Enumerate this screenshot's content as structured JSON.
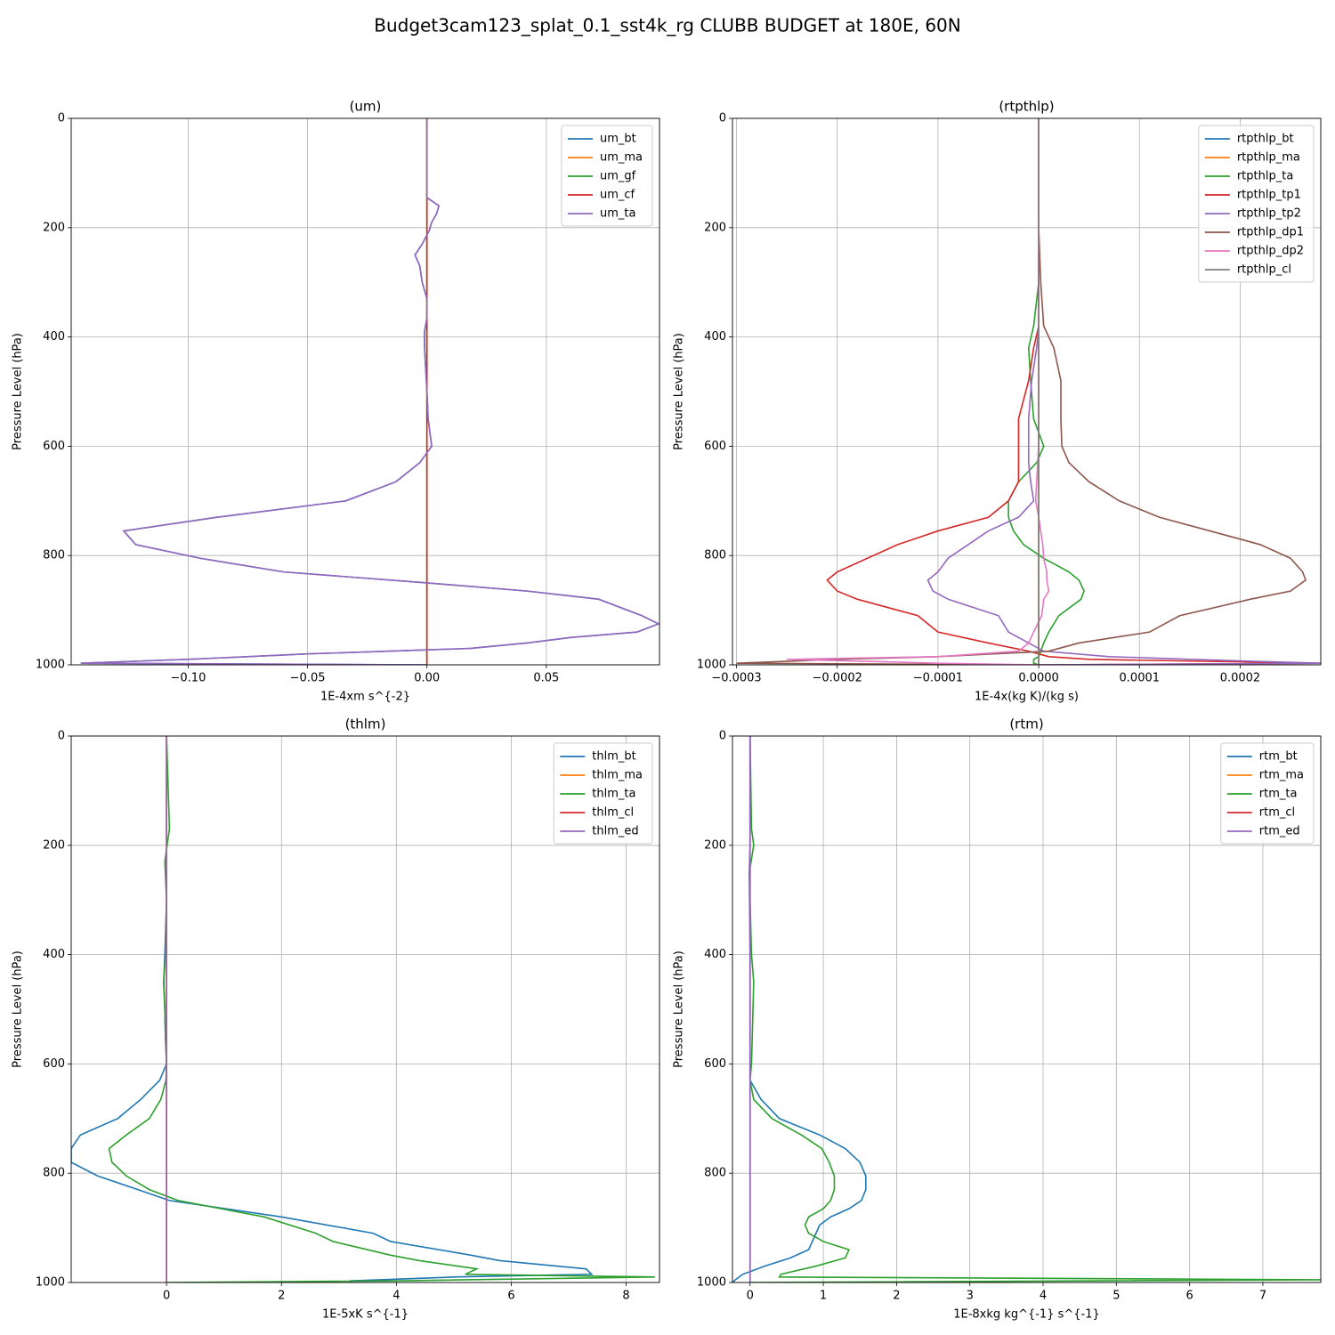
{
  "title": "Budget3cam123_splat_0.1_sst4k_rg CLUBB BUDGET at 180E, 60N",
  "chart_data": [
    {
      "type": "line",
      "title": "(um)",
      "xlabel": "1E-4xm s^{-2}",
      "ylabel": "Pressure Level (hPa)",
      "xlim": [
        -0.149,
        0.0974
      ],
      "ylim": [
        1000,
        0
      ],
      "xticks": [
        {
          "value": -0.1,
          "label": "−0.10"
        },
        {
          "value": -0.05,
          "label": "−0.05"
        },
        {
          "value": 0,
          "label": "0.00"
        },
        0.05
      ],
      "yticks": [
        0,
        200,
        400,
        600,
        800,
        1000
      ],
      "grid": true,
      "legend": "upper right",
      "y": [
        0,
        145,
        160,
        175,
        190,
        205,
        230,
        250,
        270,
        300,
        330,
        365,
        390,
        420,
        500,
        550,
        600,
        630,
        665,
        700,
        730,
        755,
        780,
        805,
        830,
        850,
        865,
        880,
        910,
        925,
        940,
        950,
        960,
        970,
        980,
        990,
        997,
        1000
      ],
      "series": [
        {
          "name": "um_bt",
          "color": "#1f77b4",
          "values": [
            0,
            0,
            0.005,
            0.004,
            0.002,
            0.001,
            -0.002,
            -0.005,
            -0.003,
            -0.002,
            0,
            0,
            -0.001,
            -0.001,
            0,
            0.0005,
            0.002,
            -0.003,
            -0.013,
            -0.034,
            -0.088,
            -0.127,
            -0.122,
            -0.095,
            -0.06,
            0,
            0.042,
            0.072,
            0.09,
            0.097,
            0.088,
            0.06,
            0.042,
            0.018,
            -0.05,
            -0.1,
            -0.145,
            0
          ]
        },
        {
          "name": "um_ma",
          "color": "#ff7f0e",
          "values": [
            0,
            0,
            0,
            0,
            0,
            0,
            0,
            0,
            0,
            0,
            0,
            0,
            0,
            0,
            0,
            0,
            0,
            0,
            0,
            0,
            0,
            0,
            0,
            0,
            0,
            0,
            0,
            0,
            0,
            0,
            0,
            0,
            0,
            0,
            0,
            0,
            0,
            0
          ]
        },
        {
          "name": "um_gf",
          "color": "#2ca02c",
          "values": [
            0,
            0,
            0,
            0,
            0,
            0,
            0,
            0,
            0,
            0,
            0,
            0,
            0,
            0,
            0,
            0,
            0,
            0,
            0,
            0,
            0,
            0,
            0,
            0,
            0,
            0,
            0,
            0,
            0,
            0,
            0,
            0,
            0,
            0,
            0,
            0,
            0,
            0
          ]
        },
        {
          "name": "um_cf",
          "color": "#d62728",
          "values": [
            0,
            0,
            0,
            0,
            0,
            0,
            0,
            0,
            0,
            0,
            0,
            0,
            0,
            0,
            0,
            0,
            0,
            0,
            0,
            0,
            0,
            0,
            0,
            0,
            0,
            0,
            0,
            0,
            0,
            0,
            0,
            0,
            0,
            0,
            0,
            0,
            0,
            0
          ]
        },
        {
          "name": "um_ta",
          "color": "#9467bd",
          "values": [
            0,
            0,
            0.005,
            0.004,
            0.002,
            0.001,
            -0.002,
            -0.005,
            -0.003,
            -0.002,
            0,
            0,
            -0.001,
            -0.001,
            0,
            0.0005,
            0.002,
            -0.003,
            -0.013,
            -0.034,
            -0.088,
            -0.127,
            -0.122,
            -0.095,
            -0.06,
            0,
            0.042,
            0.072,
            0.09,
            0.097,
            0.088,
            0.06,
            0.042,
            0.018,
            -0.05,
            -0.1,
            -0.145,
            0
          ]
        }
      ]
    },
    {
      "type": "line",
      "title": "(rtpthlp)",
      "xlabel": "1E-4x(kg K)/(kg s)",
      "ylabel": "Pressure Level (hPa)",
      "xlim": [
        -0.000304,
        0.00028
      ],
      "ylim": [
        1000,
        0
      ],
      "xticks": [
        {
          "value": -0.0003,
          "label": "−0.0003"
        },
        {
          "value": -0.0002,
          "label": "−0.0002"
        },
        {
          "value": -0.0001,
          "label": "−0.0001"
        },
        {
          "value": 0,
          "label": "0.0000"
        },
        0.0001,
        0.0002
      ],
      "yticks": [
        0,
        200,
        400,
        600,
        800,
        1000
      ],
      "grid": true,
      "legend": "upper right",
      "y": [
        0,
        200,
        300,
        380,
        420,
        480,
        550,
        600,
        630,
        665,
        700,
        730,
        755,
        780,
        805,
        830,
        845,
        865,
        880,
        910,
        940,
        960,
        975,
        985,
        990,
        997,
        1000
      ],
      "series": [
        {
          "name": "rtpthlp_bt",
          "color": "#1f77b4",
          "values": [
            0,
            0,
            0,
            0,
            0,
            0,
            0,
            0,
            0,
            0,
            0,
            0,
            0,
            0,
            0,
            0,
            0,
            0,
            0,
            0,
            0,
            0,
            0,
            0,
            0,
            0,
            0
          ]
        },
        {
          "name": "rtpthlp_ma",
          "color": "#ff7f0e",
          "values": [
            0,
            0,
            0,
            0,
            0,
            0,
            0,
            0,
            0,
            0,
            0,
            0,
            0,
            0,
            0,
            0,
            0,
            0,
            0,
            0,
            0,
            0,
            0,
            0,
            0,
            0,
            0
          ]
        },
        {
          "name": "rtpthlp_ta",
          "color": "#2ca02c",
          "values": [
            0,
            0,
            0,
            -5e-06,
            -1e-05,
            -8e-06,
            -5e-06,
            5e-06,
            -2e-06,
            -2e-05,
            -3e-05,
            -3e-05,
            -2.5e-05,
            -1.5e-05,
            5e-06,
            3e-05,
            4e-05,
            4.5e-05,
            4.2e-05,
            2e-05,
            1e-05,
            5e-06,
            2e-06,
            0,
            -5e-06,
            -5e-06,
            0
          ]
        },
        {
          "name": "rtpthlp_tp1",
          "color": "#d62728",
          "values": [
            0,
            0,
            0,
            0,
            -5e-06,
            -1e-05,
            -2e-05,
            -2e-05,
            -2e-05,
            -2e-05,
            -3e-05,
            -5e-05,
            -0.0001,
            -0.00014,
            -0.00017,
            -0.0002,
            -0.00021,
            -0.0002,
            -0.00018,
            -0.00012,
            -0.0001,
            -5e-05,
            -1e-05,
            1e-05,
            5e-05,
            0.00028,
            0
          ]
        },
        {
          "name": "rtpthlp_tp2",
          "color": "#9467bd",
          "values": [
            0,
            0,
            0,
            0,
            -2e-06,
            -7e-06,
            -1e-05,
            -1e-05,
            -1e-05,
            -8e-06,
            -5e-06,
            -2e-05,
            -5e-05,
            -7e-05,
            -9e-05,
            -0.0001,
            -0.00011,
            -0.000105,
            -9e-05,
            -4e-05,
            -3e-05,
            -1e-05,
            5e-06,
            7e-05,
            0.00015,
            0.00028,
            0
          ]
        },
        {
          "name": "rtpthlp_dp1",
          "color": "#8c564b",
          "values": [
            0,
            0,
            2e-06,
            5e-06,
            1.5e-05,
            2.2e-05,
            2.2e-05,
            2.3e-05,
            3e-05,
            5e-05,
            8e-05,
            0.00012,
            0.00017,
            0.00022,
            0.00025,
            0.000262,
            0.000265,
            0.00025,
            0.00021,
            0.00014,
            0.00011,
            4e-05,
            1e-05,
            -0.0001,
            -0.0002,
            -0.0003,
            0
          ]
        },
        {
          "name": "rtpthlp_dp2",
          "color": "#e377c2",
          "values": [
            0,
            0,
            0,
            0,
            0,
            0,
            0,
            0,
            -1e-06,
            -2e-06,
            -3e-06,
            0,
            2e-06,
            4e-06,
            5e-06,
            8e-06,
            8e-06,
            1e-05,
            5e-06,
            3e-06,
            -5e-06,
            -1e-05,
            -2e-05,
            -0.0001,
            -0.00025,
            -0.0001,
            0
          ]
        },
        {
          "name": "rtpthlp_cl",
          "color": "#7f7f7f",
          "values": [
            0,
            0,
            0,
            0,
            0,
            0,
            0,
            0,
            0,
            0,
            0,
            0,
            0,
            0,
            0,
            0,
            0,
            0,
            0,
            0,
            0,
            0,
            0,
            0,
            0,
            0,
            0
          ]
        }
      ]
    },
    {
      "type": "line",
      "title": "(thlm)",
      "xlabel": "1E-5xK s^{-1}",
      "ylabel": "Pressure Level (hPa)",
      "xlim": [
        -1.66,
        8.58
      ],
      "ylim": [
        1000,
        0
      ],
      "xticks": [
        0,
        2,
        4,
        6,
        8
      ],
      "yticks": [
        0,
        200,
        400,
        600,
        800,
        1000
      ],
      "grid": true,
      "legend": "upper right",
      "y": [
        0,
        170,
        230,
        300,
        400,
        450,
        500,
        550,
        600,
        630,
        665,
        700,
        730,
        755,
        780,
        805,
        830,
        850,
        880,
        910,
        925,
        950,
        960,
        975,
        985,
        990,
        997,
        1000
      ],
      "series": [
        {
          "name": "thlm_bt",
          "color": "#1f77b4",
          "values": [
            0,
            0,
            0,
            0,
            -0.03,
            -0.05,
            -0.03,
            -0.02,
            0,
            -0.12,
            -0.45,
            -0.85,
            -1.5,
            -1.66,
            -1.66,
            -1.2,
            -0.5,
            0.05,
            2.0,
            3.6,
            3.9,
            5.3,
            5.8,
            7.3,
            7.4,
            5.0,
            3.2,
            3.2
          ]
        },
        {
          "name": "thlm_ma",
          "color": "#ff7f0e",
          "values": [
            0,
            0,
            0,
            0,
            0,
            0,
            0,
            0,
            0,
            0,
            0,
            0,
            0,
            0,
            0,
            0,
            0,
            0,
            0,
            0,
            0,
            0,
            0,
            0,
            0,
            0,
            0,
            0
          ]
        },
        {
          "name": "thlm_ta",
          "color": "#2ca02c",
          "values": [
            0,
            0.05,
            -0.03,
            0,
            -0.02,
            -0.05,
            -0.03,
            -0.02,
            0,
            -0.01,
            -0.1,
            -0.3,
            -0.7,
            -1.0,
            -0.95,
            -0.7,
            -0.3,
            0.2,
            1.7,
            2.6,
            2.9,
            3.9,
            4.4,
            5.4,
            5.2,
            8.5,
            4.0,
            0
          ]
        },
        {
          "name": "thlm_cl",
          "color": "#d62728",
          "values": [
            0,
            0,
            0,
            0,
            0,
            0,
            0,
            0,
            0,
            0,
            0,
            0,
            0,
            0,
            0,
            0,
            0,
            0,
            0,
            0,
            0,
            0,
            0,
            0,
            0,
            0,
            0,
            0
          ]
        },
        {
          "name": "thlm_ed",
          "color": "#9467bd",
          "values": [
            0,
            0,
            0,
            0,
            0,
            0,
            0,
            0,
            0,
            0,
            0,
            0,
            0,
            0,
            0,
            0,
            0,
            0,
            0,
            0,
            0,
            0,
            0,
            0,
            0,
            0,
            0,
            0
          ]
        }
      ]
    },
    {
      "type": "line",
      "title": "(rtm)",
      "xlabel": "1E-8xkg kg^{-1} s^{-1}",
      "ylabel": "Pressure Level (hPa)",
      "xlim": [
        -0.24,
        7.79
      ],
      "ylim": [
        1000,
        0
      ],
      "xticks": [
        0,
        1,
        2,
        3,
        4,
        5,
        6,
        7
      ],
      "yticks": [
        0,
        200,
        400,
        600,
        800,
        1000
      ],
      "grid": true,
      "legend": "upper right",
      "y": [
        0,
        170,
        200,
        250,
        400,
        450,
        600,
        630,
        665,
        700,
        730,
        755,
        780,
        805,
        830,
        850,
        865,
        880,
        895,
        910,
        925,
        940,
        955,
        970,
        985,
        990,
        995,
        1000
      ],
      "series": [
        {
          "name": "rtm_bt",
          "color": "#1f77b4",
          "values": [
            0,
            0,
            0,
            -0.01,
            0,
            0,
            0,
            0,
            0.15,
            0.4,
            0.95,
            1.3,
            1.5,
            1.58,
            1.58,
            1.52,
            1.35,
            1.1,
            0.95,
            0.9,
            0.85,
            0.8,
            0.55,
            0.2,
            -0.1,
            -0.15,
            -0.2,
            -0.24
          ]
        },
        {
          "name": "rtm_ma",
          "color": "#ff7f0e",
          "values": [
            0,
            0,
            0,
            0,
            0,
            0,
            0,
            0,
            0,
            0,
            0,
            0,
            0,
            0,
            0,
            0,
            0,
            0,
            0,
            0,
            0,
            0,
            0,
            0,
            0,
            0,
            0,
            0
          ]
        },
        {
          "name": "rtm_ta",
          "color": "#2ca02c",
          "values": [
            0,
            0.02,
            0.05,
            -0.01,
            0.02,
            0.05,
            0.02,
            0,
            0.05,
            0.3,
            0.7,
            0.98,
            1.08,
            1.15,
            1.15,
            1.1,
            1.0,
            0.8,
            0.75,
            0.8,
            1.0,
            1.35,
            1.3,
            0.9,
            0.42,
            0.4,
            7.79,
            0
          ]
        },
        {
          "name": "rtm_cl",
          "color": "#d62728",
          "values": [
            0,
            0,
            0,
            0,
            0,
            0,
            0,
            0,
            0,
            0,
            0,
            0,
            0,
            0,
            0,
            0,
            0,
            0,
            0,
            0,
            0,
            0,
            0,
            0,
            0,
            0,
            0,
            0
          ]
        },
        {
          "name": "rtm_ed",
          "color": "#9467bd",
          "values": [
            0,
            0,
            0,
            0,
            0,
            0,
            0,
            0,
            0,
            0,
            0,
            0,
            0,
            0,
            0,
            0,
            0,
            0,
            0,
            0,
            0,
            0,
            0,
            0,
            0,
            0,
            0,
            0
          ]
        }
      ]
    }
  ]
}
